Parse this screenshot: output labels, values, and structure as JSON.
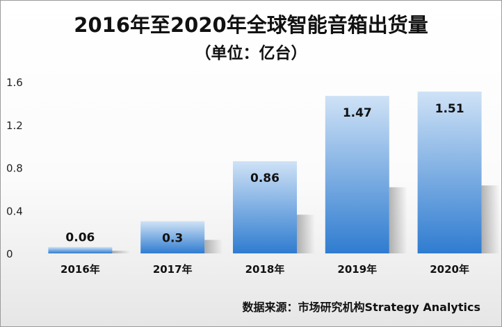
{
  "chart_data": {
    "type": "bar",
    "title": "2016年至2020年全球智能音箱出货量",
    "subtitle": "（单位：亿台）",
    "categories": [
      "2016年",
      "2017年",
      "2018年",
      "2019年",
      "2020年"
    ],
    "values": [
      0.06,
      0.3,
      0.86,
      1.47,
      1.51
    ],
    "data_labels": [
      "0.06",
      "0.3",
      "0.86",
      "1.47",
      "1.51"
    ],
    "ylim": [
      0,
      1.6
    ],
    "yticks": [
      0,
      0.4,
      0.8,
      1.2,
      1.6
    ],
    "ytick_labels": [
      "0",
      "0.4",
      "0.8",
      "1.2",
      "1.6"
    ],
    "xlabel": "",
    "ylabel": "",
    "grid": false,
    "legend": "none",
    "bar_color_top": "#cfe2f6",
    "bar_color_bottom": "#2f7cd0",
    "source": "数据来源：市场研究机构Strategy Analytics"
  }
}
